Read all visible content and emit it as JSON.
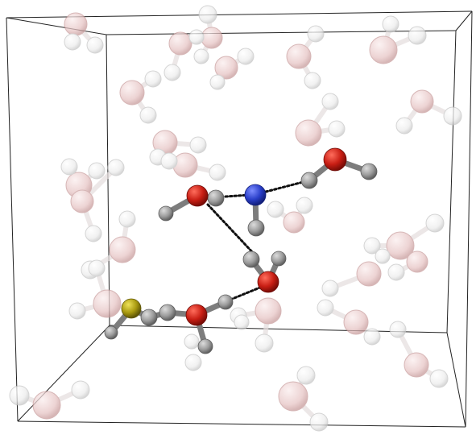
{
  "scene": {
    "background": "#ffffff",
    "colors": {
      "hydrogen": "#f2f2f2",
      "hydrogen_edge": "#c9c9c9",
      "water_oxygen": "#e9c6c6",
      "water_oxygen_edge": "#c79a9a",
      "oxygen": "#c81e14",
      "nitrogen": "#2a3fc9",
      "sulfur": "#a99a10",
      "carbon": "#9c9c9c",
      "hbond": "#111111",
      "box_edge": "#222222"
    }
  }
}
